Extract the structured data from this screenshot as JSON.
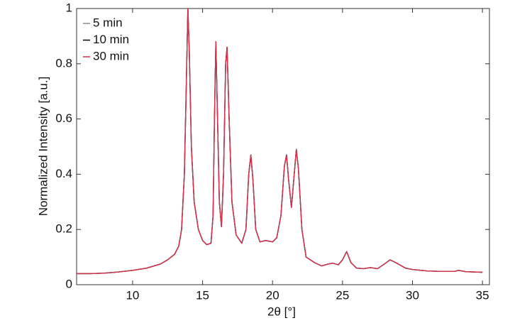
{
  "chart_data": {
    "type": "line",
    "x_label": "2θ [°]",
    "y_label": "Normalized Intensity [a.u.]",
    "xlim": [
      6,
      35.5
    ],
    "ylim": [
      0,
      1
    ],
    "xticks": [
      10,
      15,
      20,
      25,
      30,
      35
    ],
    "yticks": [
      0,
      0.2,
      0.4,
      0.6,
      0.8,
      1
    ],
    "legend": "upper left",
    "x": [
      6,
      7,
      8,
      9,
      10,
      11,
      12,
      12.5,
      13,
      13.3,
      13.5,
      13.7,
      13.85,
      13.95,
      14.05,
      14.2,
      14.4,
      14.7,
      15,
      15.3,
      15.6,
      15.75,
      15.85,
      15.95,
      16.05,
      16.2,
      16.35,
      16.5,
      16.65,
      16.75,
      16.9,
      17.1,
      17.4,
      17.8,
      18.1,
      18.3,
      18.45,
      18.6,
      18.8,
      19.1,
      19.5,
      20,
      20.3,
      20.6,
      20.85,
      21,
      21.15,
      21.35,
      21.55,
      21.7,
      21.85,
      22.1,
      22.4,
      23,
      23.5,
      24,
      24.3,
      24.7,
      25,
      25.3,
      25.6,
      26,
      26.5,
      27,
      27.5,
      28,
      28.4,
      28.8,
      29.5,
      30,
      31,
      32,
      33,
      33.3,
      33.8,
      35
    ],
    "series": [
      {
        "name": "5 min",
        "color": "#8a8a8a",
        "values": [
          0.04,
          0.04,
          0.042,
          0.046,
          0.052,
          0.06,
          0.075,
          0.09,
          0.11,
          0.14,
          0.2,
          0.4,
          0.75,
          1.0,
          0.85,
          0.5,
          0.3,
          0.2,
          0.16,
          0.145,
          0.15,
          0.25,
          0.6,
          0.88,
          0.65,
          0.3,
          0.21,
          0.4,
          0.8,
          0.86,
          0.6,
          0.3,
          0.18,
          0.15,
          0.2,
          0.4,
          0.47,
          0.38,
          0.2,
          0.155,
          0.16,
          0.155,
          0.17,
          0.25,
          0.43,
          0.47,
          0.38,
          0.28,
          0.4,
          0.49,
          0.42,
          0.2,
          0.1,
          0.08,
          0.068,
          0.075,
          0.078,
          0.072,
          0.09,
          0.12,
          0.08,
          0.06,
          0.058,
          0.062,
          0.058,
          0.075,
          0.09,
          0.08,
          0.06,
          0.055,
          0.05,
          0.048,
          0.048,
          0.052,
          0.047,
          0.045
        ]
      },
      {
        "name": "10 min",
        "color": "#000000",
        "values": [
          0.04,
          0.04,
          0.042,
          0.046,
          0.052,
          0.06,
          0.075,
          0.09,
          0.11,
          0.14,
          0.2,
          0.4,
          0.75,
          1.0,
          0.85,
          0.5,
          0.3,
          0.2,
          0.16,
          0.145,
          0.15,
          0.25,
          0.6,
          0.88,
          0.65,
          0.3,
          0.21,
          0.4,
          0.8,
          0.86,
          0.6,
          0.3,
          0.18,
          0.15,
          0.2,
          0.4,
          0.47,
          0.38,
          0.2,
          0.155,
          0.16,
          0.155,
          0.17,
          0.25,
          0.43,
          0.47,
          0.38,
          0.28,
          0.4,
          0.49,
          0.42,
          0.2,
          0.1,
          0.08,
          0.068,
          0.075,
          0.078,
          0.072,
          0.09,
          0.12,
          0.08,
          0.06,
          0.058,
          0.062,
          0.058,
          0.075,
          0.09,
          0.08,
          0.06,
          0.055,
          0.05,
          0.048,
          0.048,
          0.052,
          0.047,
          0.045
        ]
      },
      {
        "name": "30 min",
        "color": "#d6334f",
        "values": [
          0.04,
          0.04,
          0.042,
          0.046,
          0.052,
          0.06,
          0.075,
          0.09,
          0.11,
          0.14,
          0.2,
          0.4,
          0.75,
          1.0,
          0.85,
          0.5,
          0.3,
          0.2,
          0.16,
          0.145,
          0.15,
          0.25,
          0.6,
          0.88,
          0.65,
          0.3,
          0.21,
          0.4,
          0.8,
          0.86,
          0.6,
          0.3,
          0.18,
          0.15,
          0.2,
          0.4,
          0.47,
          0.38,
          0.2,
          0.155,
          0.16,
          0.155,
          0.17,
          0.25,
          0.43,
          0.47,
          0.38,
          0.28,
          0.4,
          0.49,
          0.42,
          0.2,
          0.1,
          0.08,
          0.068,
          0.075,
          0.078,
          0.072,
          0.09,
          0.12,
          0.08,
          0.06,
          0.058,
          0.062,
          0.058,
          0.075,
          0.09,
          0.08,
          0.06,
          0.055,
          0.05,
          0.048,
          0.048,
          0.052,
          0.047,
          0.045
        ]
      }
    ]
  }
}
